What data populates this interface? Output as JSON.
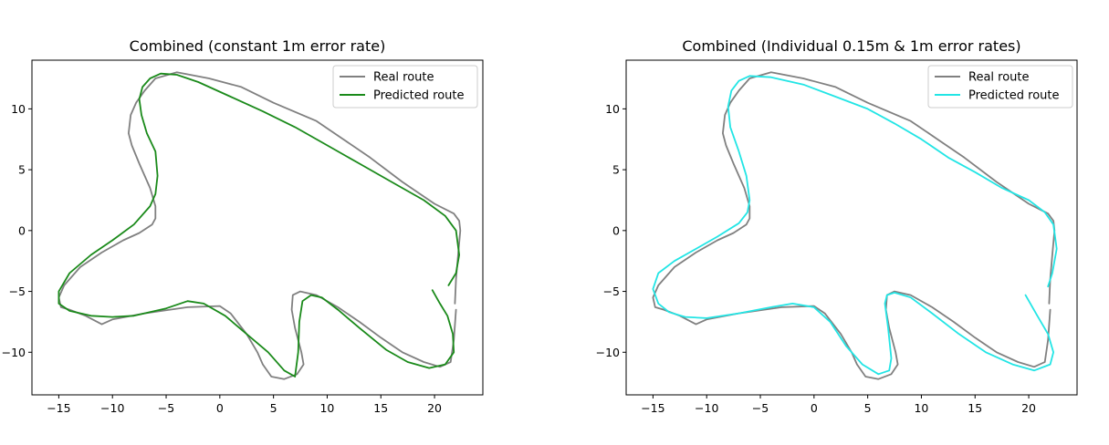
{
  "chart_data": [
    {
      "type": "line",
      "title": "Combined (constant 1m error rate)",
      "xlim": [
        -17.5,
        24.5
      ],
      "ylim": [
        -13.5,
        14
      ],
      "xticks": [
        -15,
        -10,
        -5,
        0,
        5,
        10,
        15,
        20
      ],
      "yticks": [
        -10,
        -5,
        0,
        5,
        10
      ],
      "xtick_labels": [
        "−15",
        "−10",
        "−5",
        "0",
        "5",
        "10",
        "15",
        "20"
      ],
      "ytick_labels": [
        "−10",
        "−5",
        "0",
        "5",
        "10"
      ],
      "legend": {
        "placement": "top-right"
      },
      "series": [
        {
          "name": "Real route",
          "color": "#808080",
          "x": [
            21.9,
            22.0,
            22.2,
            22.4,
            22.3,
            21.8,
            20.0,
            17.0,
            14.0,
            11.5,
            9.0,
            5.0,
            2.0,
            -1.0,
            -4.0,
            -6.0,
            -7.0,
            -7.8,
            -8.3,
            -8.5,
            -8.2,
            -7.5,
            -6.5,
            -6.0,
            -6.0,
            -6.3,
            -7.5,
            -9.0,
            -11.0,
            -13.0,
            -14.5,
            -15.0,
            -14.8,
            -14.0,
            -12.5,
            -11.0,
            -10.0,
            -7.0,
            -3.0,
            0.0,
            1.0,
            2.5,
            3.5,
            4.0,
            4.8,
            6.0,
            7.2,
            7.8,
            7.6,
            7.0,
            6.7,
            6.8,
            7.5,
            9.0,
            11.0,
            13.0,
            15.0,
            17.0,
            19.0,
            20.5,
            21.5,
            21.8,
            22.0
          ],
          "y": [
            -6.0,
            -4.0,
            -2.0,
            0.0,
            0.8,
            1.4,
            2.2,
            4.0,
            6.0,
            7.5,
            9.0,
            10.5,
            11.8,
            12.5,
            13.0,
            12.5,
            11.5,
            10.5,
            9.5,
            8.0,
            7.0,
            5.5,
            3.5,
            2.0,
            1.0,
            0.5,
            -0.2,
            -0.8,
            -1.8,
            -3.0,
            -4.5,
            -5.5,
            -6.3,
            -6.5,
            -7.0,
            -7.7,
            -7.3,
            -6.8,
            -6.3,
            -6.2,
            -6.8,
            -8.5,
            -10.0,
            -11.0,
            -12.0,
            -12.2,
            -11.8,
            -11.0,
            -10.0,
            -8.0,
            -6.5,
            -5.3,
            -5.0,
            -5.3,
            -6.3,
            -7.5,
            -8.8,
            -10.0,
            -10.8,
            -11.2,
            -10.8,
            -9.0,
            -6.5
          ]
        },
        {
          "name": "Predicted route",
          "color": "#1a8a1a",
          "x": [
            21.3,
            22.0,
            22.3,
            22.0,
            21.0,
            19.0,
            16.0,
            13.0,
            10.0,
            7.0,
            4.0,
            1.0,
            -2.0,
            -4.0,
            -5.5,
            -6.5,
            -7.2,
            -7.5,
            -7.3,
            -6.8,
            -6.0,
            -5.8,
            -6.0,
            -6.5,
            -8.0,
            -10.0,
            -12.0,
            -14.0,
            -15.0,
            -15.0,
            -14.0,
            -12.0,
            -10.0,
            -8.0,
            -5.0,
            -3.0,
            -1.5,
            0.5,
            2.5,
            4.5,
            6.0,
            7.0,
            7.3,
            7.4,
            7.7,
            8.5,
            9.5,
            11.0,
            13.0,
            15.5,
            17.5,
            19.5,
            21.0,
            21.8,
            21.7,
            21.2,
            20.5,
            19.8
          ],
          "y": [
            -4.5,
            -3.5,
            -2.0,
            0.0,
            1.2,
            2.5,
            4.0,
            5.5,
            7.0,
            8.5,
            9.8,
            11.0,
            12.2,
            12.8,
            12.9,
            12.5,
            11.8,
            10.8,
            9.5,
            8.0,
            6.5,
            4.5,
            3.0,
            2.0,
            0.5,
            -0.8,
            -2.0,
            -3.5,
            -5.0,
            -6.0,
            -6.6,
            -7.0,
            -7.1,
            -7.0,
            -6.4,
            -5.8,
            -6.0,
            -7.0,
            -8.5,
            -10.0,
            -11.5,
            -12.0,
            -10.0,
            -7.5,
            -5.8,
            -5.3,
            -5.5,
            -6.5,
            -8.0,
            -9.8,
            -10.8,
            -11.3,
            -11.0,
            -10.0,
            -8.5,
            -7.0,
            -6.0,
            -4.9
          ]
        }
      ]
    },
    {
      "type": "line",
      "title": "Combined (Individual 0.15m & 1m error rates)",
      "xlim": [
        -17.5,
        24.5
      ],
      "ylim": [
        -13.5,
        14
      ],
      "xticks": [
        -15,
        -10,
        -5,
        0,
        5,
        10,
        15,
        20
      ],
      "yticks": [
        -10,
        -5,
        0,
        5,
        10
      ],
      "xtick_labels": [
        "−15",
        "−10",
        "−5",
        "0",
        "5",
        "10",
        "15",
        "20"
      ],
      "ytick_labels": [
        "−10",
        "−5",
        "0",
        "5",
        "10"
      ],
      "legend": {
        "placement": "top-right"
      },
      "series": [
        {
          "name": "Real route",
          "color": "#808080",
          "x": [
            21.9,
            22.0,
            22.2,
            22.4,
            22.3,
            21.8,
            20.0,
            17.0,
            14.0,
            11.5,
            9.0,
            5.0,
            2.0,
            -1.0,
            -4.0,
            -6.0,
            -7.0,
            -7.8,
            -8.3,
            -8.5,
            -8.2,
            -7.5,
            -6.5,
            -6.0,
            -6.0,
            -6.3,
            -7.5,
            -9.0,
            -11.0,
            -13.0,
            -14.5,
            -15.0,
            -14.8,
            -14.0,
            -12.5,
            -11.0,
            -10.0,
            -7.0,
            -3.0,
            0.0,
            1.0,
            2.5,
            3.5,
            4.0,
            4.8,
            6.0,
            7.2,
            7.8,
            7.6,
            7.0,
            6.7,
            6.8,
            7.5,
            9.0,
            11.0,
            13.0,
            15.0,
            17.0,
            19.0,
            20.5,
            21.5,
            21.8,
            22.0
          ],
          "y": [
            -6.0,
            -4.0,
            -2.0,
            0.0,
            0.8,
            1.4,
            2.2,
            4.0,
            6.0,
            7.5,
            9.0,
            10.5,
            11.8,
            12.5,
            13.0,
            12.5,
            11.5,
            10.5,
            9.5,
            8.0,
            7.0,
            5.5,
            3.5,
            2.0,
            1.0,
            0.5,
            -0.2,
            -0.8,
            -1.8,
            -3.0,
            -4.5,
            -5.5,
            -6.3,
            -6.5,
            -7.0,
            -7.7,
            -7.3,
            -6.8,
            -6.3,
            -6.2,
            -6.8,
            -8.5,
            -10.0,
            -11.0,
            -12.0,
            -12.2,
            -11.8,
            -11.0,
            -10.0,
            -8.0,
            -6.5,
            -5.3,
            -5.0,
            -5.3,
            -6.3,
            -7.5,
            -8.8,
            -10.0,
            -10.8,
            -11.2,
            -10.8,
            -9.0,
            -6.5
          ]
        },
        {
          "name": "Predicted route",
          "color": "#22e5e5",
          "x": [
            21.8,
            22.2,
            22.6,
            22.3,
            21.5,
            20.0,
            17.5,
            15.0,
            12.5,
            10.0,
            7.5,
            5.0,
            2.0,
            -1.0,
            -4.0,
            -6.0,
            -7.0,
            -7.7,
            -8.0,
            -7.8,
            -7.0,
            -6.3,
            -6.0,
            -6.2,
            -7.0,
            -9.0,
            -11.0,
            -13.0,
            -14.5,
            -15.0,
            -14.5,
            -13.5,
            -12.0,
            -10.0,
            -7.0,
            -4.0,
            -2.0,
            0.0,
            1.5,
            3.0,
            4.5,
            6.0,
            7.0,
            7.2,
            6.9,
            6.6,
            6.8,
            7.5,
            9.0,
            11.0,
            13.5,
            16.0,
            18.5,
            20.5,
            22.0,
            22.3,
            21.8,
            20.8,
            19.7
          ],
          "y": [
            -4.6,
            -3.5,
            -1.5,
            0.5,
            1.5,
            2.5,
            3.5,
            4.8,
            6.0,
            7.5,
            8.8,
            10.0,
            11.0,
            12.0,
            12.6,
            12.7,
            12.3,
            11.5,
            10.2,
            8.5,
            6.5,
            4.5,
            2.5,
            1.5,
            0.6,
            -0.5,
            -1.5,
            -2.5,
            -3.5,
            -4.8,
            -6.0,
            -6.7,
            -7.1,
            -7.2,
            -6.8,
            -6.3,
            -6.0,
            -6.3,
            -7.5,
            -9.5,
            -11.0,
            -11.8,
            -11.5,
            -10.5,
            -8.0,
            -6.0,
            -5.3,
            -5.1,
            -5.5,
            -6.8,
            -8.5,
            -10.0,
            -11.0,
            -11.5,
            -11.0,
            -10.0,
            -8.5,
            -7.0,
            -5.3
          ]
        }
      ]
    }
  ]
}
